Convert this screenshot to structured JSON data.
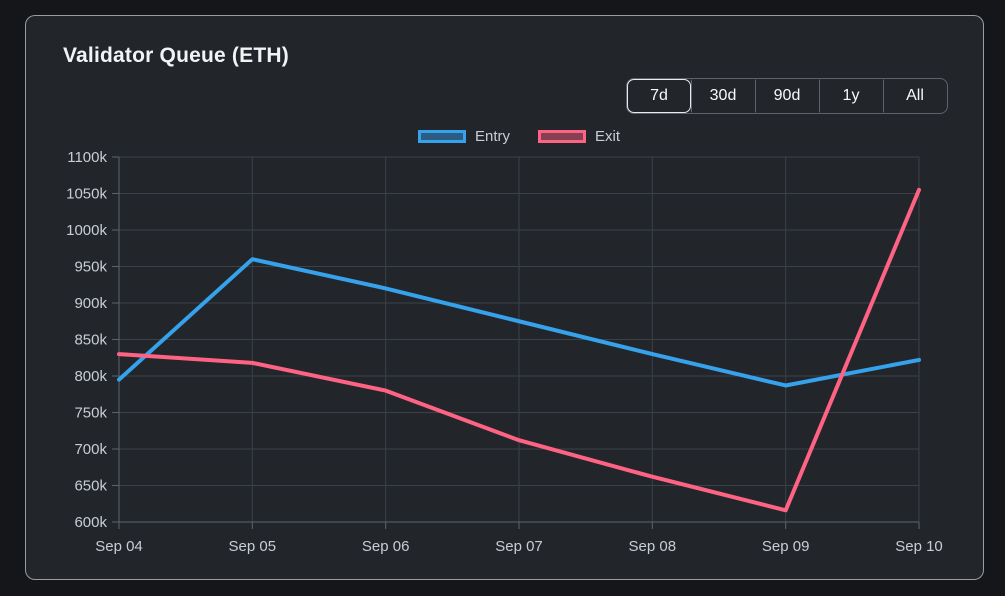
{
  "card": {
    "title": "Validator Queue (ETH)"
  },
  "range_buttons": {
    "options": [
      "7d",
      "30d",
      "90d",
      "1y",
      "All"
    ],
    "selected": "7d"
  },
  "legend": [
    {
      "label": "Entry",
      "color": "#36a2eb",
      "fill": "rgba(54,162,235,0.45)"
    },
    {
      "label": "Exit",
      "color": "#ff6384",
      "fill": "rgba(255,99,132,0.45)"
    }
  ],
  "chart_data": {
    "type": "line",
    "title": "Validator Queue (ETH)",
    "xlabel": "",
    "ylabel": "",
    "x": [
      "Sep 04",
      "Sep 05",
      "Sep 06",
      "Sep 07",
      "Sep 08",
      "Sep 09",
      "Sep 10"
    ],
    "series": [
      {
        "name": "Entry",
        "color": "#36a2eb",
        "values": [
          795000,
          960000,
          920000,
          875000,
          830000,
          787000,
          822000
        ]
      },
      {
        "name": "Exit",
        "color": "#ff6384",
        "values": [
          830000,
          818000,
          780000,
          712000,
          662000,
          616000,
          1055000
        ]
      }
    ],
    "ylim": [
      600000,
      1100000
    ],
    "ytick_step": 50000,
    "ytick_format": "k",
    "grid": true,
    "legend_position": "top"
  },
  "colors": {
    "page_bg": "#141619",
    "card_bg": "#22262b",
    "card_border": "rgba(255,255,255,0.55)",
    "gridline": "#3b4148",
    "axis": "#5c646c",
    "tick_label": "#c9ced4",
    "title_text": "#f1f3f5"
  }
}
